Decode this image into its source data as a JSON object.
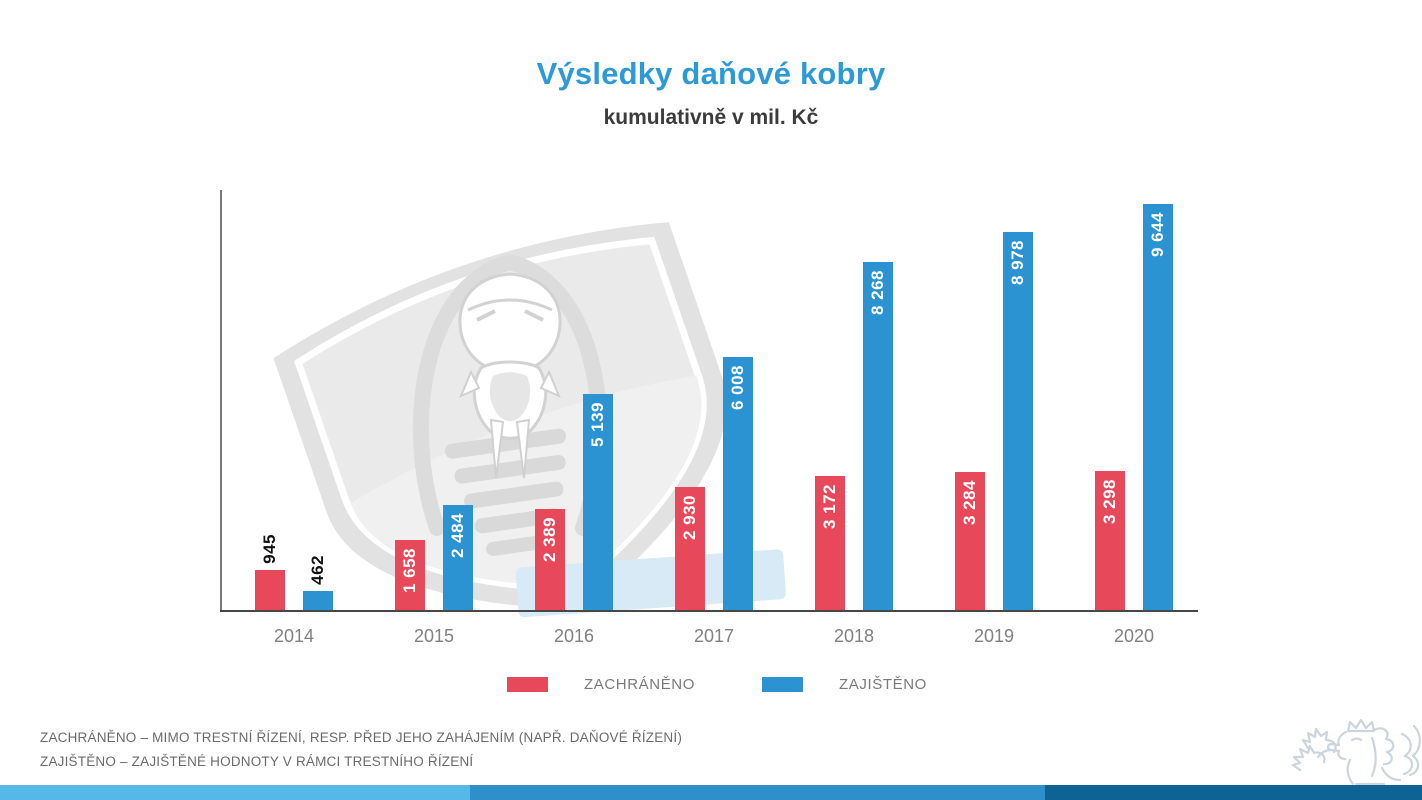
{
  "title": "Výsledky daňové kobry",
  "subtitle": "kumulativně v mil. Kč",
  "chart_data": {
    "type": "bar",
    "categories": [
      "2014",
      "2015",
      "2016",
      "2017",
      "2018",
      "2019",
      "2020"
    ],
    "series": [
      {
        "key": "zachraneno",
        "name": "ZACHRÁNĚNO",
        "color": "#e8495a",
        "values": [
          945,
          1658,
          2389,
          2930,
          3172,
          3284,
          3298
        ],
        "labels": [
          "945",
          "1 658",
          "2 389",
          "2 930",
          "3 172",
          "3 284",
          "3 298"
        ]
      },
      {
        "key": "zajisteno",
        "name": "ZAJIŠTĚNO",
        "color": "#2b93d1",
        "values": [
          462,
          2484,
          5139,
          6008,
          8268,
          8978,
          9644
        ],
        "labels": [
          "462",
          "2 484",
          "5 139",
          "6 008",
          "8 268",
          "8 978",
          "9 644"
        ]
      }
    ],
    "xlabel": "",
    "ylabel": "",
    "ylim": [
      0,
      10000
    ],
    "grid": false,
    "legend_position": "bottom",
    "value_labels_rotation": "vertical",
    "units": "mil. Kč"
  },
  "legend": {
    "items": [
      {
        "label": "ZACHRÁNĚNO",
        "color": "#e8495a"
      },
      {
        "label": "ZAJIŠTĚNO",
        "color": "#2b93d1"
      }
    ]
  },
  "footnotes": [
    "ZACHRÁNĚNO – MIMO TRESTNÍ ŘÍZENÍ, RESP. PŘED JEHO ZAHÁJENÍM (NAPŘ. DAŇOVÉ ŘÍZENÍ)",
    "ZAJIŠTĚNO – ZAJIŠTĚNÉ HODNOTY V RÁMCI TRESTNÍHO ŘÍZENÍ"
  ],
  "colors": {
    "title": "#2b9ad7",
    "subtitle": "#3c3c3c",
    "axis": "#787878",
    "baseline": "#474747",
    "year_label": "#808080",
    "legend_text": "#7a7a7a",
    "footnote_text": "#6b6b6b",
    "watermark_gray": "#e2e2e2",
    "watermark_blue": "#d8eaf6",
    "lion_outline": "#ccd5dd"
  },
  "footer": {
    "stripe_colors": [
      "#56b8e8",
      "#2e8fc9",
      "#0d6494"
    ]
  }
}
